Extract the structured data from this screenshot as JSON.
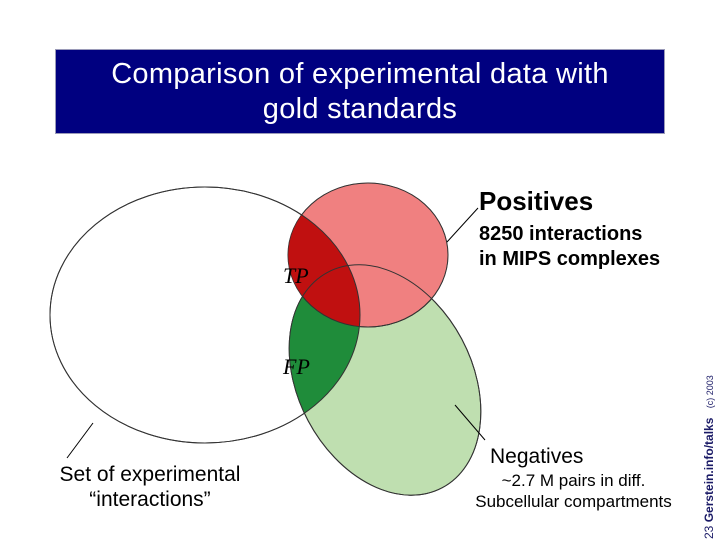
{
  "title": "Comparison of experimental data with\ngold standards",
  "positives": {
    "heading": "Positives",
    "description": "8250 interactions\nin MIPS complexes"
  },
  "negatives": {
    "heading": "Negatives",
    "description": "~2.7 M pairs in diff.\nSubcellular compartments"
  },
  "experimental_label": "Set of experimental\n“interactions”",
  "tp_label": "TP",
  "fp_label": "FP",
  "credit": {
    "page": "23",
    "site": "Gerstein.info/talks",
    "copyright": "(c) 2003"
  },
  "colors": {
    "title_bg": "#000080",
    "positives": "#f08080",
    "negatives": "#bfdfb0",
    "tp": "#c01010",
    "fp": "#1f8c3a"
  }
}
